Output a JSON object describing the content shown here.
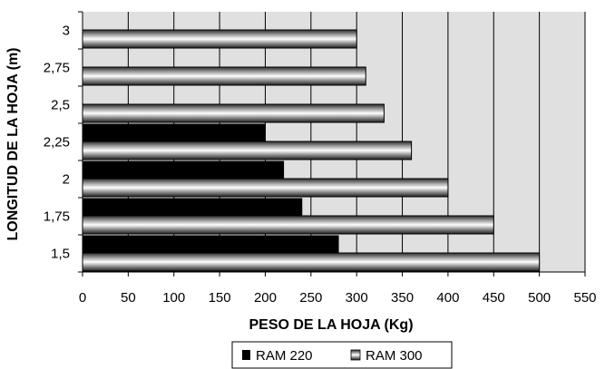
{
  "chart_data": {
    "type": "bar",
    "orientation": "horizontal",
    "categories": [
      "1,5",
      "1,75",
      "2",
      "2,25",
      "2,5",
      "2,75",
      "3"
    ],
    "series": [
      {
        "name": "RAM 220",
        "values": [
          280,
          240,
          220,
          200,
          null,
          null,
          null
        ],
        "color": "#000000"
      },
      {
        "name": "RAM 300",
        "values": [
          500,
          450,
          400,
          360,
          330,
          310,
          300
        ],
        "color": "gradient-gray"
      }
    ],
    "xlabel": "PESO DE LA HOJA (Kg)",
    "ylabel": "LONGITUD DE LA HOJA (m)",
    "xlim": [
      0,
      550
    ],
    "xticks": [
      "0",
      "50",
      "100",
      "150",
      "200",
      "250",
      "300",
      "350",
      "400",
      "450",
      "500",
      "550"
    ],
    "grid": "vertical",
    "legend": "bottom",
    "plot_background": "#e0e0e0"
  }
}
